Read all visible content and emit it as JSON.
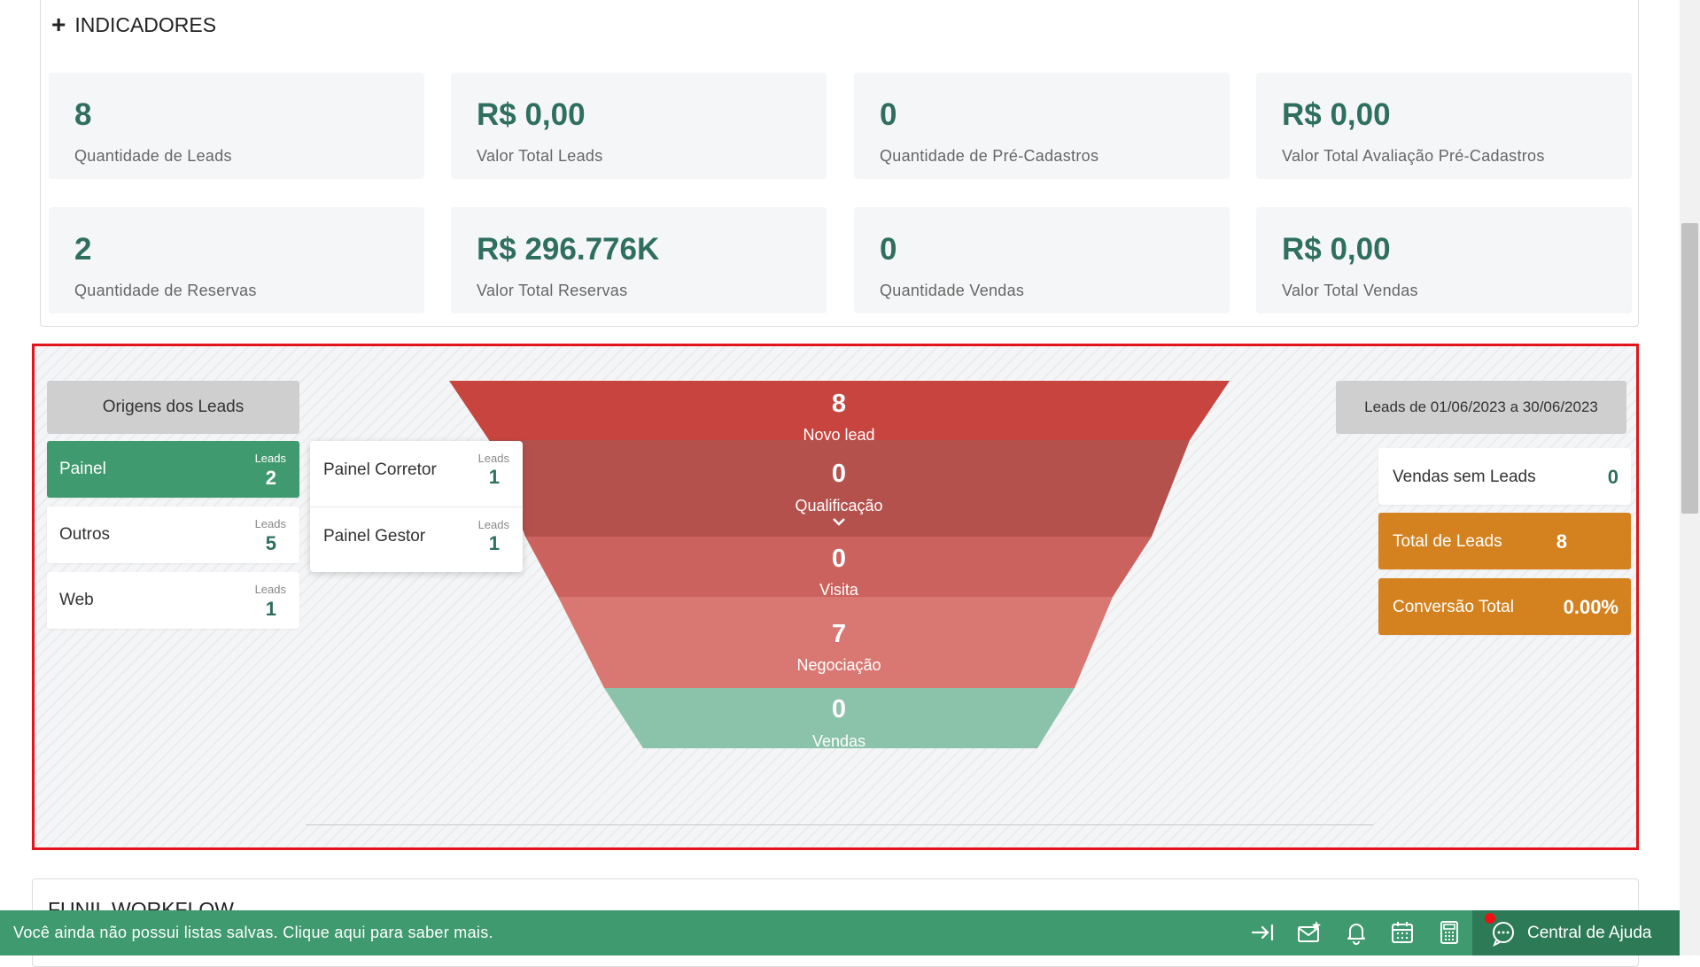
{
  "indicadores": {
    "title": "INDICADORES",
    "cards": [
      {
        "value": "8",
        "label": "Quantidade de Leads"
      },
      {
        "value": "R$ 0,00",
        "label": "Valor Total Leads"
      },
      {
        "value": "0",
        "label": "Quantidade de Pré-Cadastros"
      },
      {
        "value": "R$ 0,00",
        "label": "Valor Total Avaliação Pré-Cadastros"
      },
      {
        "value": "2",
        "label": "Quantidade de Reservas"
      },
      {
        "value": "R$ 296.776K",
        "label": "Valor Total Reservas"
      },
      {
        "value": "0",
        "label": "Quantidade Vendas"
      },
      {
        "value": "R$ 0,00",
        "label": "Valor Total Vendas"
      }
    ]
  },
  "origins": {
    "header": "Origens dos Leads",
    "leads_label": "Leads",
    "items": [
      {
        "name": "Painel",
        "leads": "2",
        "active": true
      },
      {
        "name": "Outros",
        "leads": "5",
        "active": false
      },
      {
        "name": "Web",
        "leads": "1",
        "active": false
      }
    ],
    "sub_items": [
      {
        "name": "Painel Corretor",
        "leads": "1"
      },
      {
        "name": "Painel Gestor",
        "leads": "1"
      }
    ]
  },
  "funnel": {
    "stages": [
      {
        "name": "Novo lead",
        "value": "8",
        "color": "#c8453f"
      },
      {
        "name": "Qualificação",
        "value": "0",
        "color": "#b5514d"
      },
      {
        "name": "Visita",
        "value": "0",
        "color": "#cc625d"
      },
      {
        "name": "Negociação",
        "value": "7",
        "color": "#d97872"
      },
      {
        "name": "Vendas",
        "value": "0",
        "color": "#8bc2aa"
      }
    ],
    "expand_icon": "chevron-down-icon"
  },
  "summary": {
    "period": "Leads de 01/06/2023 a 30/06/2023",
    "vendas_sem_leads": {
      "label": "Vendas sem Leads",
      "value": "0"
    },
    "total_leads": {
      "label": "Total de Leads",
      "value": "8"
    },
    "conversao_total": {
      "label": "Conversão Total",
      "value": "0.00%"
    },
    "accent_color": "#d4821f"
  },
  "next_section": {
    "title": "FUNIL WORKFLOW"
  },
  "bottom_bar": {
    "message": "Você ainda não possui listas salvas. Clique aqui para saber mais.",
    "icons": [
      "sign-in-icon",
      "mail-star-icon",
      "bell-icon",
      "calendar-icon",
      "calculator-icon"
    ],
    "help_label": "Central de Ajuda",
    "color": "#3f9a6f"
  }
}
